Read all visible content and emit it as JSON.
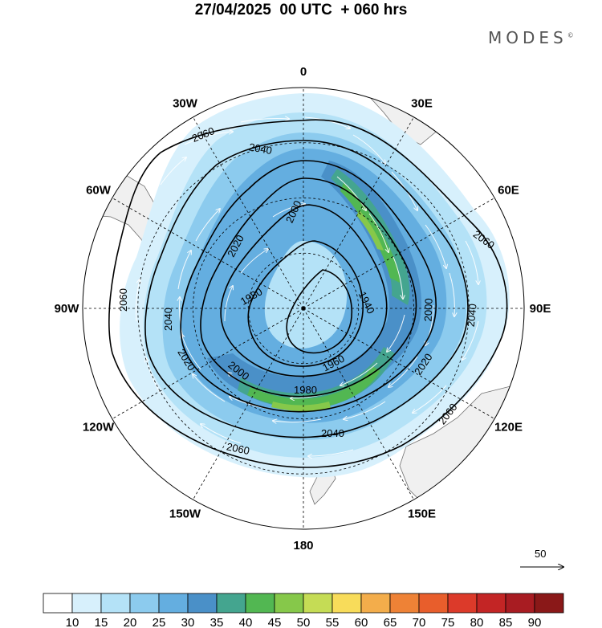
{
  "title": "27/04/2025  00 UTC  + 060 hrs",
  "brand": "MODES",
  "brand_mark": "©",
  "meridian_labels": [
    {
      "text": "0",
      "angle": 0
    },
    {
      "text": "30E",
      "angle": 30
    },
    {
      "text": "60E",
      "angle": 60
    },
    {
      "text": "90E",
      "angle": 90
    },
    {
      "text": "120E",
      "angle": 120
    },
    {
      "text": "150E",
      "angle": 150
    },
    {
      "text": "180",
      "angle": 180
    },
    {
      "text": "150W",
      "angle": 210
    },
    {
      "text": "120W",
      "angle": 240
    },
    {
      "text": "90W",
      "angle": 270
    },
    {
      "text": "60W",
      "angle": 300
    },
    {
      "text": "30W",
      "angle": 330
    }
  ],
  "contour_labels": [
    "1940",
    "1960",
    "1980",
    "2000",
    "2020",
    "2040",
    "2060"
  ],
  "wind_reference": {
    "label": "50",
    "icon": "arrow-right-icon"
  },
  "colorbar": {
    "ticks": [
      "10",
      "15",
      "20",
      "25",
      "30",
      "35",
      "40",
      "45",
      "50",
      "55",
      "60",
      "65",
      "70",
      "75",
      "80",
      "85",
      "90"
    ],
    "colors": [
      "#ffffff",
      "#d7f0fc",
      "#b4e2f7",
      "#8ccbee",
      "#64aee0",
      "#4a90c8",
      "#44a58f",
      "#52b752",
      "#86c84a",
      "#c5dc55",
      "#f8dc5a",
      "#f3ad4b",
      "#ee8236",
      "#e85e2c",
      "#dc3a2a",
      "#c32525",
      "#a81c22",
      "#8a1818"
    ]
  }
}
